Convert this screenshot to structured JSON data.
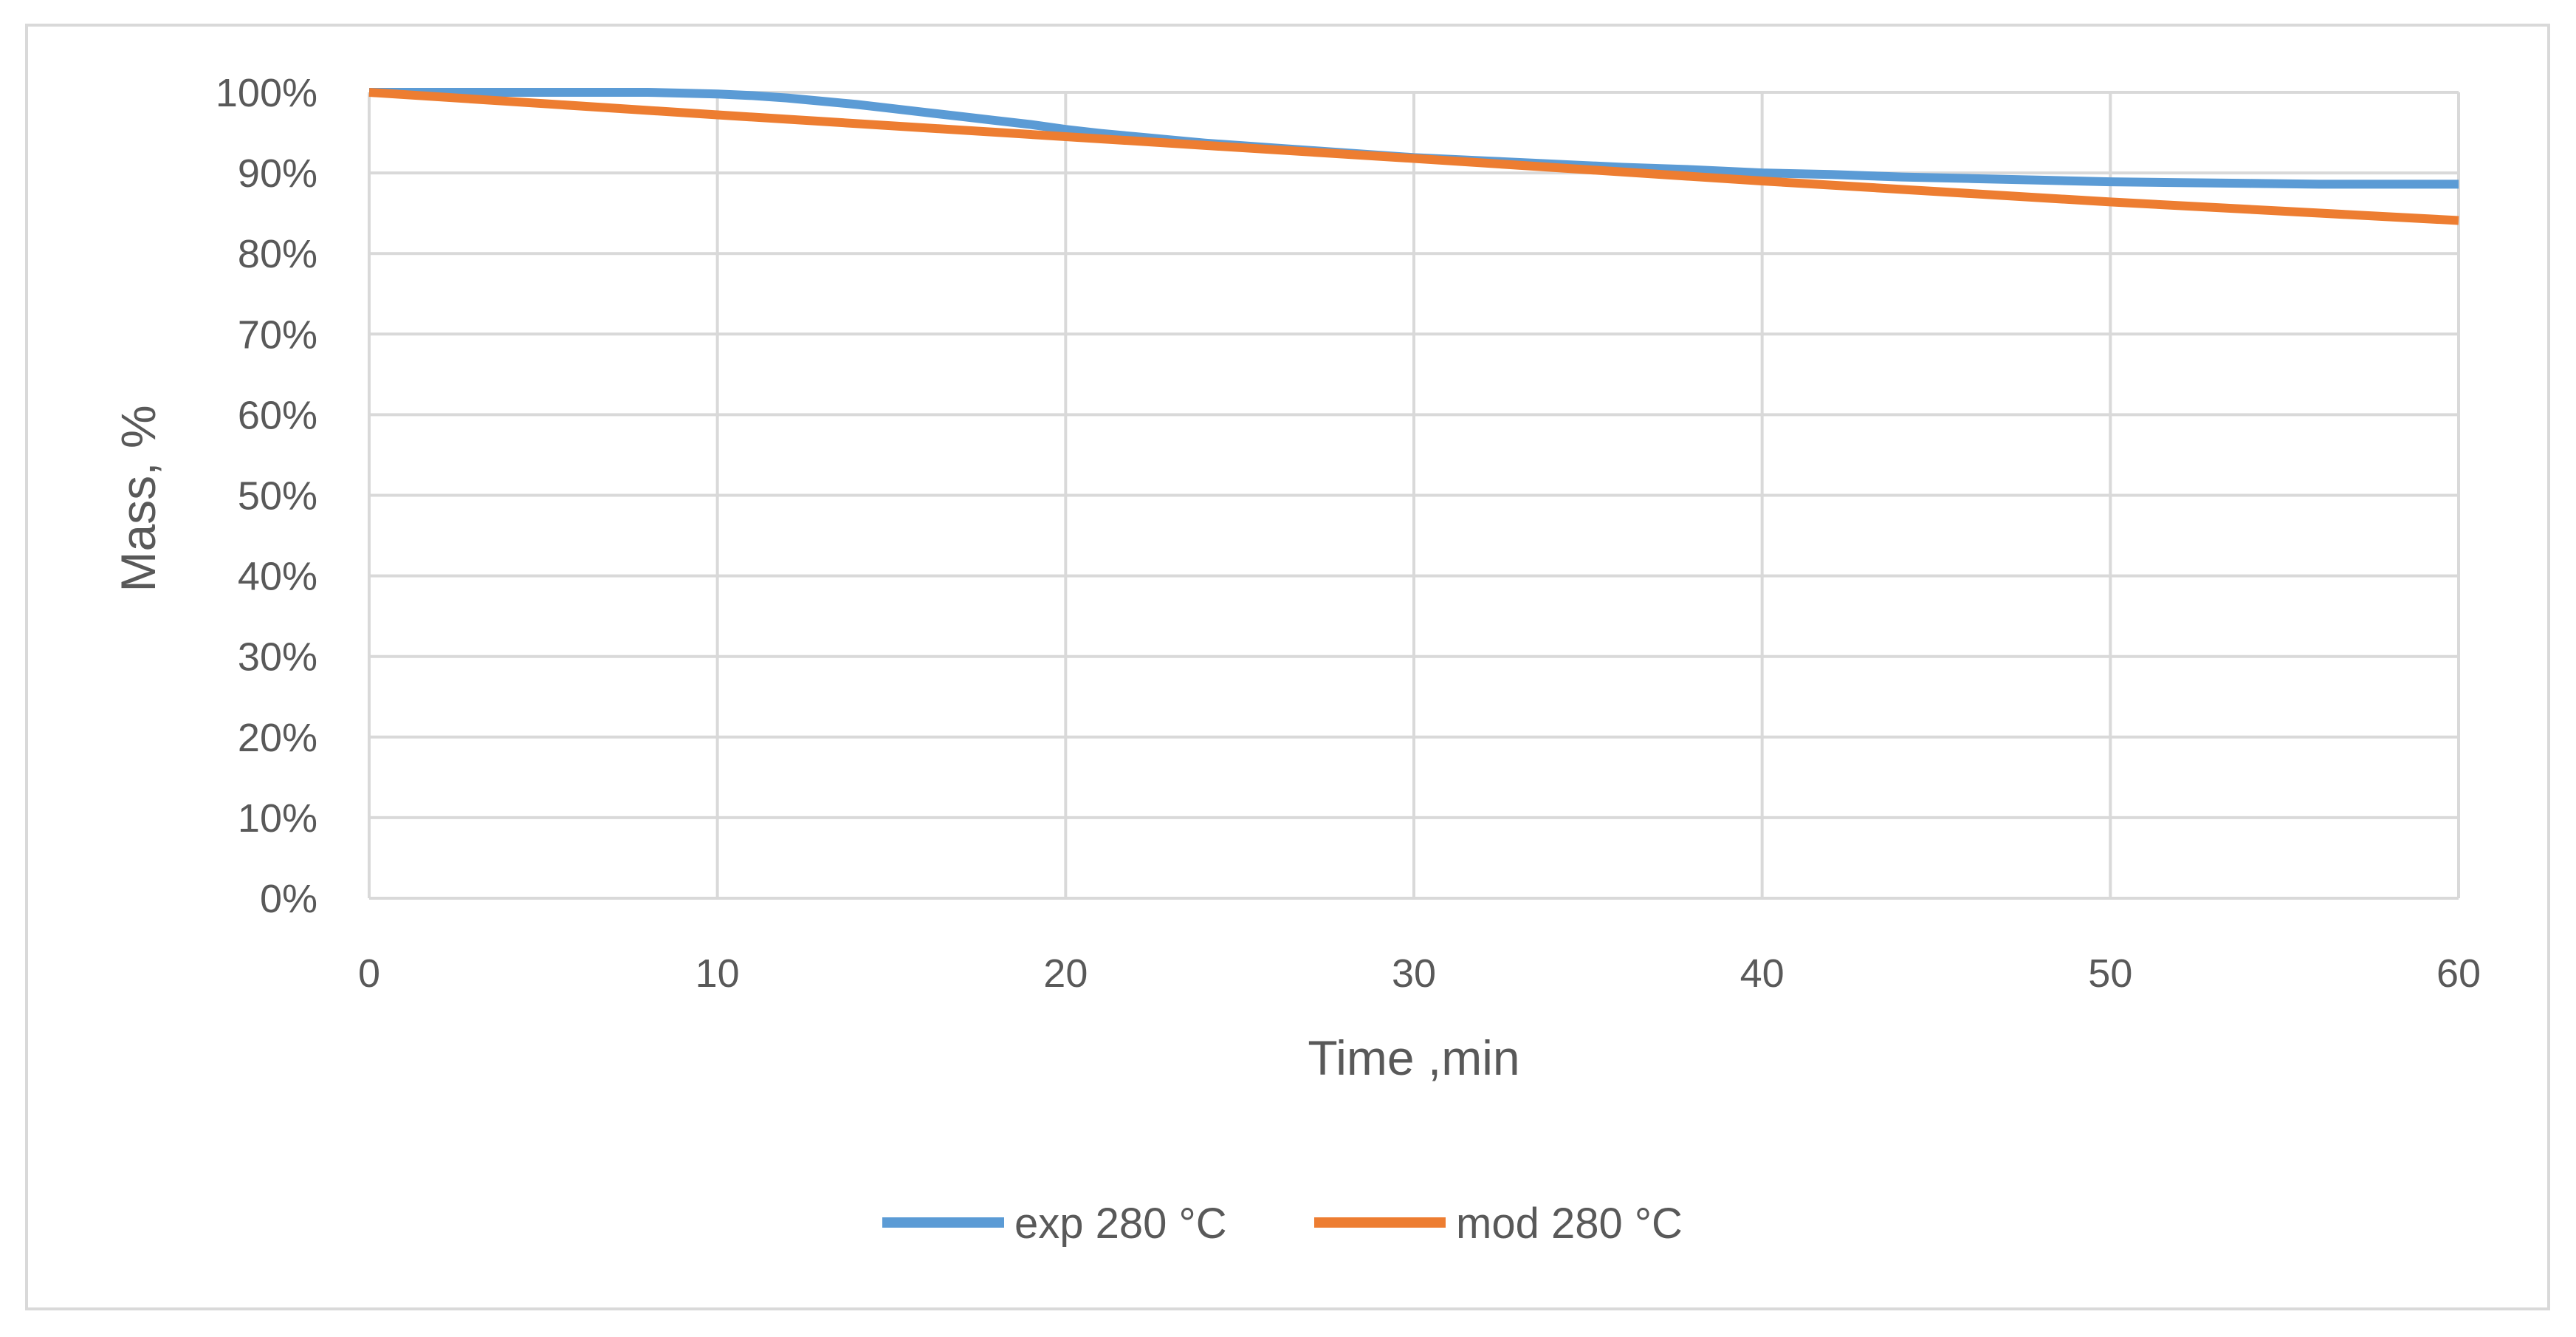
{
  "chart_data": {
    "type": "line",
    "title": "",
    "xlabel": "Time ,min",
    "ylabel": "Mass, %",
    "xlim": [
      0,
      60
    ],
    "ylim": [
      0,
      100
    ],
    "x_ticks": [
      0,
      10,
      20,
      30,
      40,
      50,
      60
    ],
    "x_tick_labels": [
      "0",
      "10",
      "20",
      "30",
      "40",
      "50",
      "60"
    ],
    "y_ticks": [
      0,
      10,
      20,
      30,
      40,
      50,
      60,
      70,
      80,
      90,
      100
    ],
    "y_tick_labels": [
      "0%",
      "10%",
      "20%",
      "30%",
      "40%",
      "50%",
      "60%",
      "70%",
      "80%",
      "90%",
      "100%"
    ],
    "grid": true,
    "legend_position": "bottom",
    "series": [
      {
        "name": "exp 280 °C",
        "color": "#5b9bd5",
        "x": [
          0,
          2,
          4,
          6,
          8,
          10,
          11,
          12,
          13,
          14,
          15,
          16,
          17,
          18,
          19,
          20,
          21,
          22,
          23,
          24,
          25,
          26,
          27,
          28,
          29,
          30,
          32,
          34,
          36,
          38,
          40,
          42,
          44,
          46,
          48,
          50,
          52,
          54,
          56,
          58,
          60
        ],
        "y": [
          100,
          100,
          100,
          100,
          100,
          99.8,
          99.6,
          99.3,
          98.9,
          98.5,
          98.0,
          97.5,
          97.0,
          96.5,
          96.0,
          95.4,
          94.9,
          94.5,
          94.1,
          93.7,
          93.4,
          93.1,
          92.8,
          92.5,
          92.2,
          91.9,
          91.5,
          91.1,
          90.7,
          90.4,
          90.0,
          89.8,
          89.5,
          89.3,
          89.1,
          88.9,
          88.8,
          88.7,
          88.6,
          88.6,
          88.6
        ]
      },
      {
        "name": "mod 280 °C",
        "color": "#ed7d31",
        "x": [
          0,
          10,
          20,
          30,
          40,
          50,
          60
        ],
        "y": [
          100,
          97.2,
          94.5,
          91.8,
          89.0,
          86.4,
          84.1
        ]
      }
    ]
  }
}
